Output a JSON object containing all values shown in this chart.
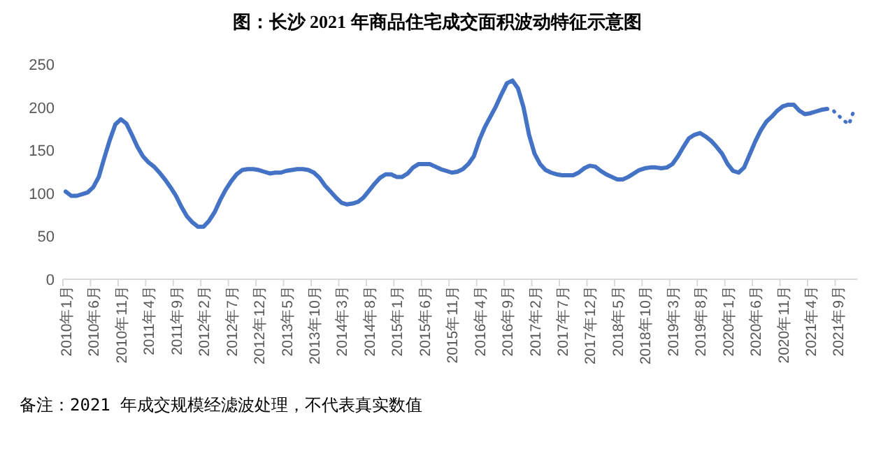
{
  "chart_data": {
    "type": "line",
    "title": "图：长沙 2021 年商品住宅成交面积波动特征示意图",
    "annotations": [
      "备注：2021 年成交规模经滤波处理，不代表真实数值"
    ],
    "categories": [
      "2010年1月",
      null,
      null,
      null,
      null,
      "2010年6月",
      null,
      null,
      null,
      null,
      "2010年11月",
      null,
      null,
      null,
      null,
      "2011年4月",
      null,
      null,
      null,
      null,
      "2011年9月",
      null,
      null,
      null,
      null,
      "2012年2月",
      null,
      null,
      null,
      null,
      "2012年7月",
      null,
      null,
      null,
      null,
      "2012年12月",
      null,
      null,
      null,
      null,
      "2013年5月",
      null,
      null,
      null,
      null,
      "2013年10月",
      null,
      null,
      null,
      null,
      "2014年3月",
      null,
      null,
      null,
      null,
      "2014年8月",
      null,
      null,
      null,
      null,
      "2015年1月",
      null,
      null,
      null,
      null,
      "2015年6月",
      null,
      null,
      null,
      null,
      "2015年11月",
      null,
      null,
      null,
      null,
      "2016年4月",
      null,
      null,
      null,
      null,
      "2016年9月",
      null,
      null,
      null,
      null,
      "2017年2月",
      null,
      null,
      null,
      null,
      "2017年7月",
      null,
      null,
      null,
      null,
      "2017年12月",
      null,
      null,
      null,
      null,
      "2018年5月",
      null,
      null,
      null,
      null,
      "2018年10月",
      null,
      null,
      null,
      null,
      "2019年3月",
      null,
      null,
      null,
      null,
      "2019年8月",
      null,
      null,
      null,
      null,
      "2020年1月",
      null,
      null,
      null,
      null,
      "2020年6月",
      null,
      null,
      null,
      null,
      "2020年11月",
      null,
      null,
      null,
      null,
      "2021年4月",
      null,
      null,
      null,
      null,
      "2021年9月",
      null,
      null,
      null
    ],
    "series": [
      {
        "color": "#4472c4",
        "line_style": "solid",
        "values": [
          102,
          97,
          97,
          99,
          101,
          107,
          119,
          141,
          162,
          180,
          186,
          181,
          168,
          154,
          143,
          136,
          131,
          124,
          116,
          107,
          97,
          84,
          73,
          66,
          61,
          61,
          68,
          78,
          92,
          104,
          114,
          122,
          127,
          128,
          128,
          127,
          125,
          123,
          124,
          124,
          126,
          127,
          128,
          128,
          127,
          124,
          118,
          109,
          102,
          95,
          89,
          87,
          88,
          90,
          95,
          103,
          111,
          118,
          122,
          122,
          119,
          119,
          123,
          130,
          134,
          134,
          134,
          131,
          128,
          126,
          124,
          125,
          128,
          134,
          143,
          162,
          177,
          189,
          201,
          215,
          228,
          231,
          222,
          200,
          168,
          146,
          134,
          127,
          124,
          122,
          121,
          121,
          121,
          124,
          129,
          132,
          131,
          126,
          122,
          119,
          116,
          116,
          119,
          123,
          127,
          129,
          130,
          130,
          129,
          130,
          134,
          143,
          154,
          164,
          168,
          170,
          166,
          161,
          154,
          146,
          134,
          126,
          124,
          130,
          145,
          160,
          173,
          183,
          189,
          196,
          201,
          203,
          203,
          196,
          192,
          193,
          195,
          197,
          198,
          null,
          null,
          null,
          null,
          null
        ]
      },
      {
        "color": "#4472c4",
        "line_style": "dotted",
        "values": [
          null,
          null,
          null,
          null,
          null,
          null,
          null,
          null,
          null,
          null,
          null,
          null,
          null,
          null,
          null,
          null,
          null,
          null,
          null,
          null,
          null,
          null,
          null,
          null,
          null,
          null,
          null,
          null,
          null,
          null,
          null,
          null,
          null,
          null,
          null,
          null,
          null,
          null,
          null,
          null,
          null,
          null,
          null,
          null,
          null,
          null,
          null,
          null,
          null,
          null,
          null,
          null,
          null,
          null,
          null,
          null,
          null,
          null,
          null,
          null,
          null,
          null,
          null,
          null,
          null,
          null,
          null,
          null,
          null,
          null,
          null,
          null,
          null,
          null,
          null,
          null,
          null,
          null,
          null,
          null,
          null,
          null,
          null,
          null,
          null,
          null,
          null,
          null,
          null,
          null,
          null,
          null,
          null,
          null,
          null,
          null,
          null,
          null,
          null,
          null,
          null,
          null,
          null,
          null,
          null,
          null,
          null,
          null,
          null,
          null,
          null,
          null,
          null,
          null,
          null,
          null,
          null,
          null,
          null,
          null,
          null,
          null,
          null,
          null,
          null,
          null,
          null,
          null,
          null,
          null,
          null,
          null,
          null,
          null,
          null,
          null,
          null,
          null,
          198,
          197,
          191,
          185,
          180,
          198
        ]
      }
    ],
    "ylim": [
      0,
      250
    ],
    "yticks": [
      0,
      50,
      100,
      150,
      200,
      250
    ],
    "grid": false,
    "marker": "none"
  }
}
